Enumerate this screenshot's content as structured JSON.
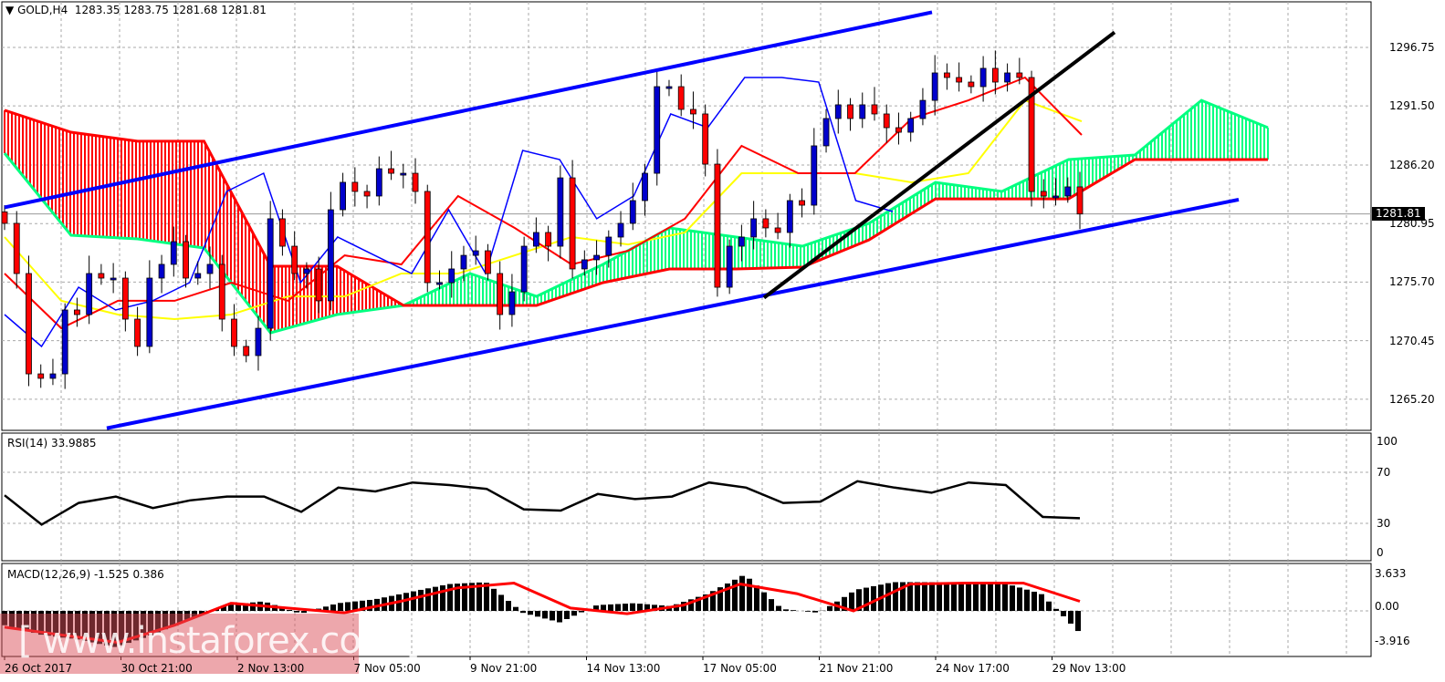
{
  "header": {
    "symbol": "GOLD,H4",
    "open": "1283.35",
    "high": "1283.75",
    "low": "1281.68",
    "close": "1281.81",
    "menu_icon": "triangle-down-icon"
  },
  "current_price_label": "1281.81",
  "rsi": {
    "label": "RSI(14) 33.9885",
    "ticks": [
      "100",
      "70",
      "30",
      "0"
    ]
  },
  "macd": {
    "label": "MACD(12,26,9) -1.525 0.386",
    "ticks": [
      "3.633",
      "0.00",
      "-3.916"
    ]
  },
  "watermark": "[ www.instaforex.com ]",
  "colors": {
    "bull": "#0000cc",
    "bear": "#ff0000",
    "tenkan": "#ff0000",
    "kijun": "#ffff00",
    "chikou": "#0000ff",
    "span_a": "#00ff80",
    "span_b": "#ff0000",
    "channel": "#0000ff",
    "trendline": "#000000",
    "signal": "#ff0000",
    "histogram": "#000000"
  },
  "chart_data": {
    "type": "candlestick",
    "timeframe": "H4",
    "price_ticks": [
      "1296.75",
      "1291.50",
      "1286.20",
      "1280.95",
      "1275.70",
      "1270.45",
      "1265.20"
    ],
    "time_ticks": [
      "26 Oct 2017",
      "30 Oct 21:00",
      "2 Nov 13:00",
      "7 Nov 05:00",
      "9 Nov 21:00",
      "14 Nov 13:00",
      "17 Nov 05:00",
      "21 Nov 21:00",
      "24 Nov 17:00",
      "29 Nov 13:00"
    ],
    "grid": true,
    "ylim": [
      1261.8,
      1300.8
    ],
    "closes": [
      1280.97,
      1276.47,
      1267.47,
      1267.07,
      1267.47,
      1273.2,
      1272.79,
      1276.47,
      1276.06,
      1276.06,
      1272.38,
      1269.93,
      1276.06,
      1277.29,
      1279.33,
      1276.06,
      1276.47,
      1277.29,
      1272.38,
      1269.93,
      1269.11,
      1271.56,
      1281.38,
      1278.92,
      1276.47,
      1276.88,
      1274.02,
      1282.19,
      1284.65,
      1283.83,
      1283.42,
      1285.87,
      1285.46,
      1285.46,
      1283.83,
      1275.65,
      1275.65,
      1276.88,
      1278.1,
      1278.51,
      1276.47,
      1272.79,
      1274.83,
      1278.92,
      1280.15,
      1278.92,
      1285.05,
      1276.88,
      1277.7,
      1278.1,
      1279.74,
      1280.97,
      1283.01,
      1285.46,
      1293.23,
      1293.23,
      1291.19,
      1290.78,
      1286.28,
      1275.24,
      1278.92,
      1279.74,
      1281.38,
      1280.56,
      1280.15,
      1283.01,
      1282.6,
      1287.92,
      1290.37,
      1291.6,
      1290.37,
      1291.6,
      1290.78,
      1289.55,
      1289.14,
      1290.37,
      1292.0,
      1294.46,
      1294.05,
      1293.64,
      1293.23,
      1294.87,
      1293.64,
      1294.46,
      1294.05,
      1283.83,
      1283.42,
      1283.42,
      1284.24,
      1281.81
    ],
    "ichimoku": {
      "tenkan": [
        1276.47,
        1271.56,
        1274.02,
        1274.02,
        1275.65,
        1274.02,
        1278.1,
        1277.29,
        1283.42,
        1280.56,
        1277.29,
        1278.51,
        1281.38,
        1287.92,
        1285.46,
        1285.46,
        1290.37,
        1292.0,
        1294.05,
        1288.9
      ],
      "kijun": [
        1279.74,
        1274.02,
        1272.79,
        1272.38,
        1272.79,
        1274.42,
        1274.42,
        1276.47,
        1276.47,
        1278.1,
        1279.74,
        1279.08,
        1280.15,
        1285.46,
        1285.46,
        1285.46,
        1284.65,
        1285.46,
        1292.0,
        1290.12
      ],
      "chikou": [
        1272.79,
        1269.93,
        1275.24,
        1273.2,
        1274.02,
        1275.65,
        1283.83,
        1285.46,
        1275.65,
        1279.74,
        1278.1,
        1276.47,
        1282.19,
        1276.47,
        1287.51,
        1286.69,
        1281.38,
        1283.42,
        1290.78,
        1289.55,
        1294.05,
        1294.05,
        1293.64,
        1283.01,
        1282.03
      ],
      "span_a": [
        1287.26,
        1279.9,
        1279.58,
        1278.76,
        1271.15,
        1272.79,
        1273.61,
        1276.47,
        1274.42,
        1277.29,
        1280.56,
        1279.74,
        1278.92,
        1280.97,
        1284.65,
        1283.83,
        1286.69,
        1287.1,
        1292.0,
        1289.55
      ],
      "span_b": [
        1291.11,
        1289.14,
        1288.33,
        1288.33,
        1277.12,
        1277.12,
        1273.61,
        1273.61,
        1273.61,
        1275.65,
        1276.88,
        1276.88,
        1277.04,
        1279.49,
        1283.17,
        1283.17,
        1283.17,
        1286.69,
        1286.69,
        1286.69
      ]
    },
    "trendlines": [
      {
        "kind": "channel-upper",
        "from": {
          "bar": 0,
          "price": 1282.4
        },
        "to": {
          "bar": 127,
          "price": 1299.9
        }
      },
      {
        "kind": "channel-lower",
        "from": {
          "bar": 14,
          "price": 1262.6
        },
        "to": {
          "bar": 169,
          "price": 1283.1
        }
      },
      {
        "kind": "support-trendline",
        "from": {
          "bar": 104,
          "price": 1274.3
        },
        "to": {
          "bar": 152,
          "price": 1298.1
        }
      }
    ],
    "rsi_values": [
      52,
      29,
      46,
      51,
      42,
      48,
      51,
      51,
      39,
      58,
      55,
      62,
      60,
      57,
      41,
      40,
      53,
      49,
      51,
      62,
      58,
      46,
      47,
      63,
      58,
      54,
      62,
      60,
      35,
      34
    ],
    "rsi_range": [
      0,
      100
    ],
    "macd_histogram": [
      -1.5,
      -2.5,
      -3,
      -3.8,
      -2.5,
      -0.8,
      0.6,
      1.0,
      -0.3,
      0.8,
      1.2,
      2.0,
      2.8,
      3.0,
      -0.2,
      -1.2,
      0.6,
      0.8,
      0.5,
      1.8,
      3.8,
      0.2,
      -0.2,
      2.2,
      3.0,
      3.0,
      2.9,
      2.9,
      1.8,
      -2.1
    ],
    "macd_signal": [
      -1.7,
      -2.5,
      -3.3,
      -1.5,
      0.8,
      0.3,
      -0.2,
      1.0,
      2.4,
      2.9,
      0.3,
      -0.3,
      0.6,
      2.8,
      1.8,
      0.0,
      2.8,
      2.9,
      2.9,
      1.0
    ],
    "macd_range": [
      -3.916,
      3.633
    ]
  }
}
